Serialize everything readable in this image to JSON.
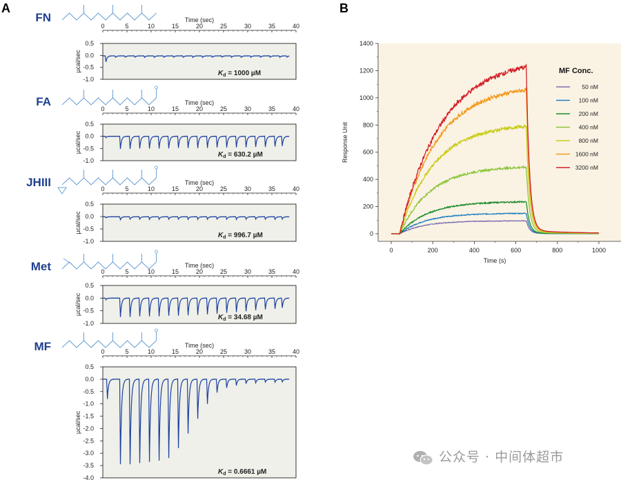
{
  "panels": {
    "a": "A",
    "b": "B"
  },
  "watermark": "公众号 · 中间体超市",
  "chart_data": [
    {
      "type": "line",
      "id": "FN",
      "compound": "FN",
      "xlabel": "Time (sec)",
      "ylabel": "µcal/sec",
      "xlim": [
        0,
        40
      ],
      "xticks": [
        0,
        5,
        10,
        15,
        20,
        25,
        30,
        35,
        40
      ],
      "ylim": [
        -1.0,
        0.5
      ],
      "yticks": [
        0.5,
        0.0,
        -0.5,
        -1.0
      ],
      "kd_label": "K",
      "kd_sub": "d",
      "kd_value": " = 1000 µM",
      "baseline": -0.02,
      "injection_times": [
        0.5,
        2.5,
        4.5,
        6.5,
        8.5,
        10.5,
        12.5,
        14.5,
        16.5,
        18.5,
        20.5,
        22.5,
        24.5,
        26.5,
        28.5,
        30.5,
        32.5,
        34.5,
        36.5,
        38.0
      ],
      "peaks": [
        -0.25,
        -0.06,
        -0.06,
        -0.06,
        -0.06,
        -0.06,
        -0.06,
        -0.06,
        -0.06,
        -0.06,
        -0.06,
        -0.06,
        -0.06,
        -0.06,
        -0.06,
        -0.06,
        -0.06,
        -0.06,
        -0.06,
        -0.05
      ]
    },
    {
      "type": "line",
      "id": "FA",
      "compound": "FA",
      "xlabel": "Time (sec)",
      "ylabel": "µcal/sec",
      "xlim": [
        0,
        40
      ],
      "xticks": [
        0,
        5,
        10,
        15,
        20,
        25,
        30,
        35,
        40
      ],
      "ylim": [
        -1.0,
        0.5
      ],
      "yticks": [
        0.5,
        0.0,
        -0.5,
        -1.0
      ],
      "kd_label": "K",
      "kd_sub": "d",
      "kd_value": " = 630.2 µM",
      "baseline": 0.0,
      "injection_times": [
        0.5,
        3.5,
        5.5,
        7.5,
        9.5,
        11.5,
        13.5,
        15.5,
        17.5,
        19.5,
        21.5,
        23.5,
        25.5,
        27.5,
        29.5,
        31.5,
        33.5,
        35.5,
        37.0
      ],
      "peaks": [
        -0.05,
        -0.52,
        -0.52,
        -0.5,
        -0.5,
        -0.5,
        -0.5,
        -0.48,
        -0.48,
        -0.48,
        -0.48,
        -0.46,
        -0.46,
        -0.45,
        -0.45,
        -0.44,
        -0.44,
        -0.42,
        -0.4
      ]
    },
    {
      "type": "line",
      "id": "JHIII",
      "compound": "JHIII",
      "xlabel": "Time (sec)",
      "ylabel": "µcal/sec",
      "xlim": [
        0,
        40
      ],
      "xticks": [
        0,
        5,
        10,
        15,
        20,
        25,
        30,
        35,
        40
      ],
      "ylim": [
        -1.0,
        0.5
      ],
      "yticks": [
        0.5,
        0.0,
        -0.5,
        -1.0
      ],
      "kd_label": "K",
      "kd_sub": "d",
      "kd_value": " = 996.7 µM",
      "baseline": -0.01,
      "injection_times": [
        0.5,
        3.5,
        5.5,
        7.5,
        9.5,
        11.5,
        13.5,
        15.5,
        17.5,
        19.5,
        21.5,
        23.5,
        25.5,
        27.5,
        29.5,
        31.5,
        33.5,
        35.5,
        37.0
      ],
      "peaks": [
        -0.04,
        -0.12,
        -0.1,
        -0.1,
        -0.1,
        -0.1,
        -0.1,
        -0.1,
        -0.1,
        -0.1,
        -0.1,
        -0.1,
        -0.1,
        -0.1,
        -0.1,
        -0.1,
        -0.1,
        -0.1,
        -0.09
      ]
    },
    {
      "type": "line",
      "id": "Met",
      "compound": "Met",
      "xlabel": "Time (sec)",
      "ylabel": "µcal/sec",
      "xlim": [
        0,
        40
      ],
      "xticks": [
        0,
        5,
        10,
        15,
        20,
        25,
        30,
        35,
        40
      ],
      "ylim": [
        -1.0,
        0.5
      ],
      "yticks": [
        0.5,
        0.0,
        -0.5,
        -1.0
      ],
      "kd_label": "K",
      "kd_sub": "d",
      "kd_value": " = 34.68 µM",
      "baseline": 0.0,
      "injection_times": [
        0.5,
        3.5,
        5.5,
        7.5,
        9.5,
        11.5,
        13.5,
        15.5,
        17.5,
        19.5,
        21.5,
        23.5,
        25.5,
        27.5,
        29.5,
        31.5,
        33.5,
        35.5,
        37.0
      ],
      "peaks": [
        -0.06,
        -0.75,
        -0.75,
        -0.72,
        -0.72,
        -0.72,
        -0.7,
        -0.7,
        -0.68,
        -0.66,
        -0.64,
        -0.62,
        -0.58,
        -0.55,
        -0.52,
        -0.48,
        -0.45,
        -0.42,
        -0.38
      ]
    },
    {
      "type": "line",
      "id": "MF",
      "compound": "MF",
      "xlabel": "Time (sec)",
      "ylabel": "µcal/sec",
      "xlim": [
        0,
        40
      ],
      "xticks": [
        0,
        5,
        10,
        15,
        20,
        25,
        30,
        35,
        40
      ],
      "ylim": [
        -4.0,
        0.5
      ],
      "yticks": [
        0.5,
        0.0,
        -0.5,
        -1.0,
        -1.5,
        -2.0,
        -2.5,
        -3.0,
        -3.5,
        -4.0
      ],
      "kd_label": "K",
      "kd_sub": "d",
      "kd_value": " = 0.6661 µM",
      "baseline": 0.0,
      "injection_times": [
        0.8,
        3.5,
        5.5,
        7.5,
        9.5,
        11.5,
        13.5,
        15.5,
        17.5,
        19.5,
        21.5,
        23.5,
        25.5,
        27.5,
        29.5,
        31.5,
        33.5,
        35.5,
        37.0
      ],
      "peaks": [
        -0.8,
        -3.45,
        -3.45,
        -3.4,
        -3.35,
        -3.3,
        -3.2,
        -2.8,
        -2.2,
        -1.6,
        -1.0,
        -0.55,
        -0.35,
        -0.25,
        -0.18,
        -0.15,
        -0.12,
        -0.12,
        -0.1
      ]
    },
    {
      "type": "line",
      "id": "SPR",
      "title": "",
      "xlabel": "Time (s)",
      "ylabel": "Response Unit",
      "xlim": [
        -20,
        1000
      ],
      "xticks": [
        0,
        200,
        400,
        600,
        800,
        1000
      ],
      "ylim": [
        -30,
        1400
      ],
      "yticks": [
        0,
        200,
        400,
        600,
        800,
        1000,
        1200,
        1400
      ],
      "legend_title": "MF Conc.",
      "association_start": 40,
      "dissociation_start": 650,
      "series": [
        {
          "name": "50 nM",
          "color": "#7b6fb0",
          "plateau": 95
        },
        {
          "name": "100 nM",
          "color": "#1f7fc0",
          "plateau": 150
        },
        {
          "name": "200 nM",
          "color": "#1a8a2a",
          "plateau": 235
        },
        {
          "name": "400 nM",
          "color": "#8cc43a",
          "plateau": 490
        },
        {
          "name": "800 nM",
          "color": "#c8cc14",
          "plateau": 790
        },
        {
          "name": "1600 nM",
          "color": "#f39a1e",
          "plateau": 1060
        },
        {
          "name": "3200 nM",
          "color": "#d2202a",
          "plateau": 1230
        }
      ]
    }
  ]
}
